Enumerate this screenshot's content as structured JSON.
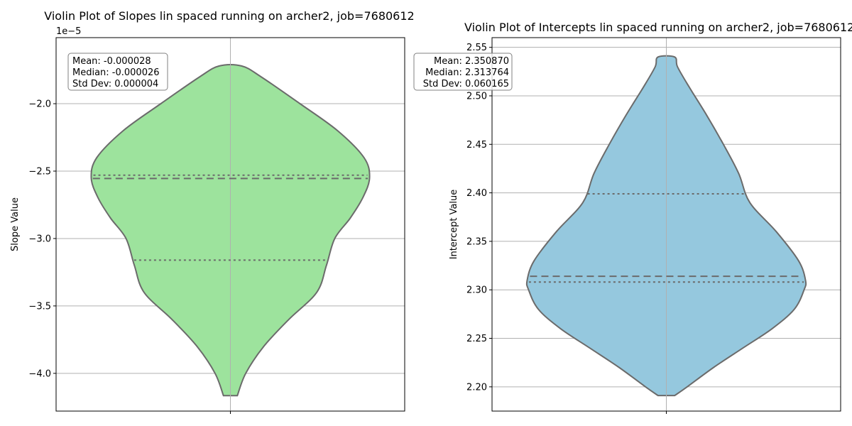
{
  "colors": {
    "left_violin_fill": "#9de39d",
    "right_violin_fill": "#95c8de",
    "violin_edge": "#6b6b6b",
    "grid": "#b0b0b0",
    "stats_box_edge": "#808080"
  },
  "chart_data": [
    {
      "type": "violin",
      "title": "Violin Plot of Slopes lin spaced running on archer2, job=7680612",
      "ylabel": "Slope Value",
      "y_offset_label": "1e−5",
      "ylim": [
        -4.28e-05,
        -1.51e-05
      ],
      "yticks": [
        -2e-05,
        -2.5e-05,
        -3e-05,
        -3.5e-05,
        -4e-05
      ],
      "ytick_labels": [
        "−2.0",
        "−2.5",
        "−3.0",
        "−3.5",
        "−4.0"
      ],
      "grid": true,
      "stats": {
        "mean_line": "Mean: -0.000028",
        "median_line": "Median: -0.000026",
        "std_line": "Std Dev: 0.000004",
        "placement": "top-left"
      },
      "quartile_lines": {
        "q1": -3.16e-05,
        "median": -2.555e-05,
        "q3": -2.53e-05
      },
      "violin_profile": {
        "y": [
          -4.165e-05,
          -4e-05,
          -3.8e-05,
          -3.6e-05,
          -3.4e-05,
          -3.2e-05,
          -3e-05,
          -2.85e-05,
          -2.7e-05,
          -2.55e-05,
          -2.4e-05,
          -2.2e-05,
          -2e-05,
          -1.8e-05,
          -1.72e-05
        ],
        "half_width": [
          0.05,
          0.11,
          0.24,
          0.42,
          0.62,
          0.69,
          0.75,
          0.86,
          0.95,
          1.0,
          0.96,
          0.77,
          0.5,
          0.22,
          0.08
        ]
      }
    },
    {
      "type": "violin",
      "title": "Violin Plot of Intercepts lin spaced running on archer2, job=7680612",
      "ylabel": "Intercept Value",
      "ylim": [
        2.175,
        2.56
      ],
      "yticks": [
        2.2,
        2.25,
        2.3,
        2.35,
        2.4,
        2.45,
        2.5,
        2.55
      ],
      "ytick_labels": [
        "2.20",
        "2.25",
        "2.30",
        "2.35",
        "2.40",
        "2.45",
        "2.50",
        "2.55"
      ],
      "grid": true,
      "stats": {
        "mean_line": "Mean: 2.350870",
        "median_line": "Median: 2.313764",
        "std_line": "Std Dev: 0.060165",
        "placement": "top-left"
      },
      "quartile_lines": {
        "q1": 2.308,
        "median": 2.314,
        "q3": 2.399
      },
      "violin_profile": {
        "y": [
          2.191,
          2.2,
          2.22,
          2.24,
          2.26,
          2.28,
          2.3,
          2.31,
          2.33,
          2.36,
          2.39,
          2.42,
          2.45,
          2.48,
          2.51,
          2.53,
          2.54
        ],
        "half_width": [
          0.06,
          0.15,
          0.34,
          0.55,
          0.76,
          0.92,
          0.99,
          1.0,
          0.95,
          0.79,
          0.6,
          0.52,
          0.41,
          0.29,
          0.16,
          0.08,
          0.06
        ]
      }
    }
  ]
}
